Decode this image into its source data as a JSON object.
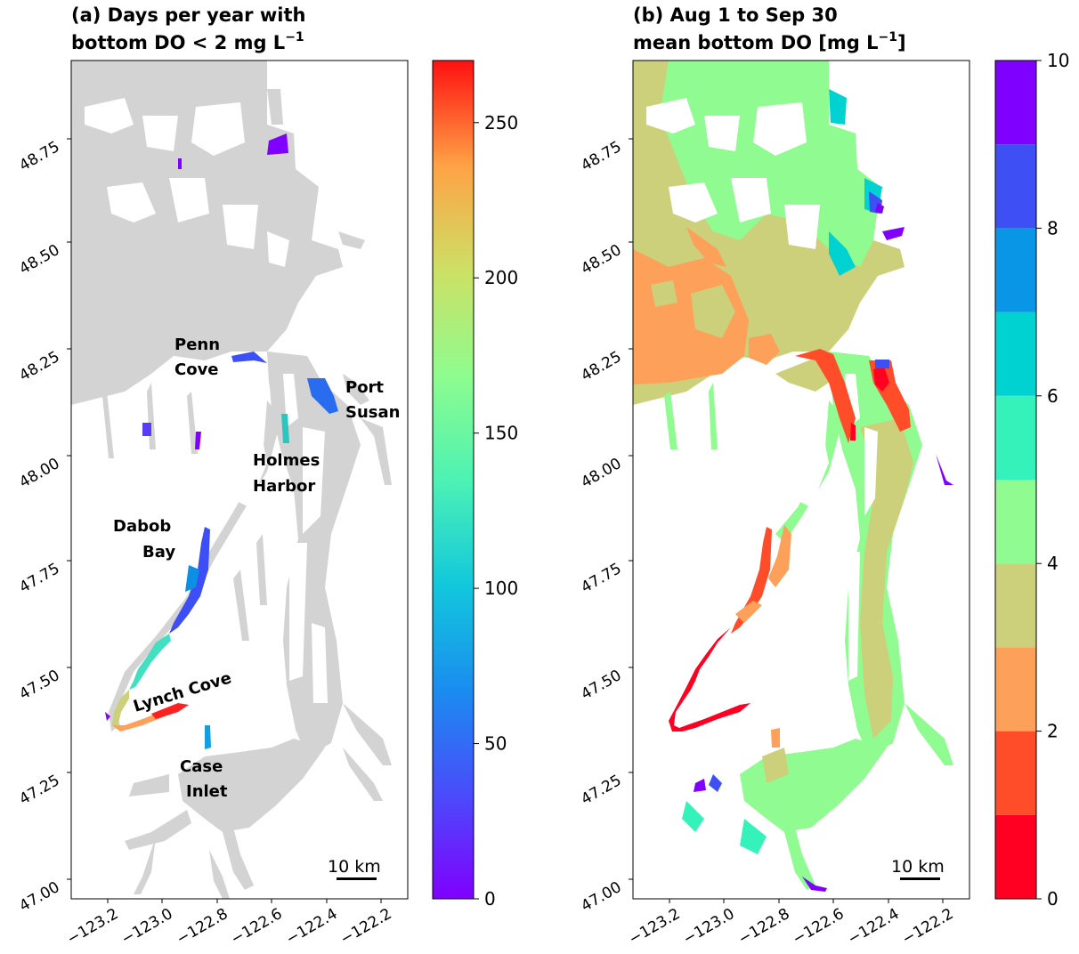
{
  "panels": [
    {
      "title_line1": "(a) Days per year with",
      "title_line2_prefix": "bottom DO < 2 mg L",
      "title_line2_sup": "−1",
      "colorbar": {
        "min": 0,
        "max": 270,
        "ticks": [
          "0",
          "50",
          "100",
          "150",
          "200",
          "250"
        ],
        "colormap": "rainbow"
      },
      "place_labels": {
        "penn_1": "Penn",
        "penn_2": "Cove",
        "port_1": "Port",
        "port_2": "Susan",
        "holmes_1": "Holmes",
        "holmes_2": "Harbor",
        "dabob_1": "Dabob",
        "dabob_2": "Bay",
        "lynch": "Lynch Cove",
        "case_1": "Case",
        "case_2": "Inlet"
      },
      "scale_bar": "10 km"
    },
    {
      "title_line1": "(b) Aug 1 to Sep 30",
      "title_line2_prefix": "mean bottom DO [mg L",
      "title_line2_sup": "−1",
      "title_line2_suffix": "]",
      "colorbar": {
        "min": 0,
        "max": 10,
        "ticks": [
          "0",
          "2",
          "4",
          "6",
          "8",
          "10"
        ],
        "levels": [
          {
            "from": 0,
            "to": 1,
            "color": "#ff0022"
          },
          {
            "from": 1,
            "to": 2,
            "color": "#ff4d2a"
          },
          {
            "from": 2,
            "to": 3,
            "color": "#fca05a"
          },
          {
            "from": 3,
            "to": 4,
            "color": "#cdd07a"
          },
          {
            "from": 4,
            "to": 5,
            "color": "#90fb90"
          },
          {
            "from": 5,
            "to": 6,
            "color": "#35f2bb"
          },
          {
            "from": 6,
            "to": 7,
            "color": "#00d2d2"
          },
          {
            "from": 7,
            "to": 8,
            "color": "#0a96e6"
          },
          {
            "from": 8,
            "to": 9,
            "color": "#3e4ff4"
          },
          {
            "from": 9,
            "to": 10,
            "color": "#8000ff"
          }
        ]
      },
      "scale_bar": "10 km"
    }
  ],
  "axes": {
    "x_ticks": [
      "−123.2",
      "−123.0",
      "−122.8",
      "−122.6",
      "−122.4",
      "−122.2"
    ],
    "y_ticks": [
      "47.00",
      "47.25",
      "47.50",
      "47.75",
      "48.00",
      "48.25",
      "48.50",
      "48.75"
    ]
  },
  "colors": {
    "land_water_gray": "#d3d3d3",
    "low_do_red": "#ff0022",
    "mid_do_olive": "#cdd07a",
    "green_do": "#90fb90"
  }
}
